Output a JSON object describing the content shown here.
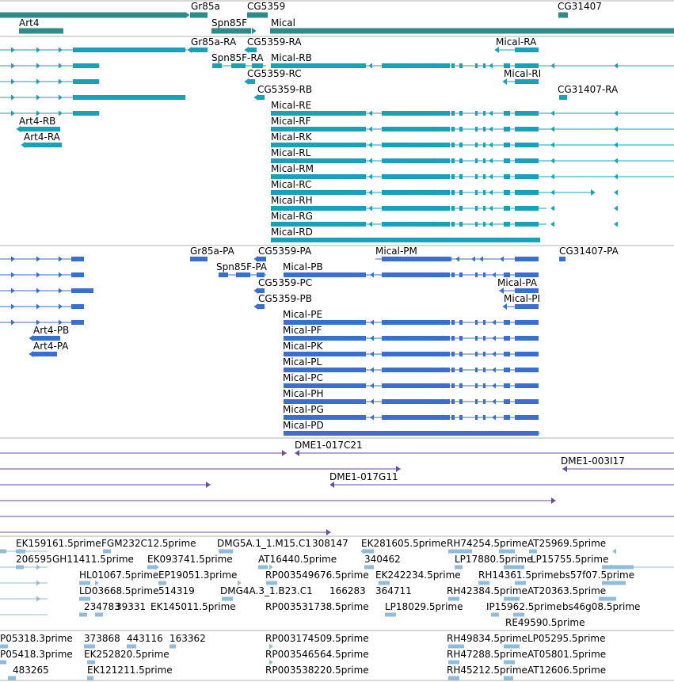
{
  "colors": {
    "gene": "#2f8a8a",
    "transcript": "#17a2b8",
    "protein": "#3a6ecf",
    "clone": "#6a4c9c",
    "est": "#8fbcd8",
    "divider": "#b0b0b0"
  },
  "tracks": [
    {
      "id": "genes",
      "labels": [
        {
          "text": "Gr85a"
        },
        {
          "text": "CG5359"
        },
        {
          "text": "CG31407"
        },
        {
          "text": "Art4"
        },
        {
          "text": "Spn85F"
        },
        {
          "text": "Mical"
        }
      ]
    },
    {
      "id": "transcripts",
      "labels": [
        {
          "text": "Gr85a-RA"
        },
        {
          "text": "CG5359-RA"
        },
        {
          "text": "Mical-RA"
        },
        {
          "text": "Spn85F-RA"
        },
        {
          "text": "Mical-RB"
        },
        {
          "text": "CG5359-RC"
        },
        {
          "text": "Mical-RI"
        },
        {
          "text": "CG5359-RB"
        },
        {
          "text": "CG31407-RA"
        },
        {
          "text": "Mical-RE"
        },
        {
          "text": "Art4-RB"
        },
        {
          "text": "Mical-RF"
        },
        {
          "text": "Art4-RA"
        },
        {
          "text": "Mical-RK"
        },
        {
          "text": "Mical-RL"
        },
        {
          "text": "Mical-RM"
        },
        {
          "text": "Mical-RC"
        },
        {
          "text": "Mical-RH"
        },
        {
          "text": "Mical-RG"
        },
        {
          "text": "Mical-RD"
        }
      ]
    },
    {
      "id": "proteins",
      "labels": [
        {
          "text": "Gr85a-PA"
        },
        {
          "text": "CG5359-PA"
        },
        {
          "text": "Mical-PM"
        },
        {
          "text": "CG31407-PA"
        },
        {
          "text": "Spn85F-PA"
        },
        {
          "text": "Mical-PB"
        },
        {
          "text": "CG5359-PC"
        },
        {
          "text": "Mical-PA"
        },
        {
          "text": "CG5359-PB"
        },
        {
          "text": "Mical-PI"
        },
        {
          "text": "Mical-PE"
        },
        {
          "text": "Art4-PB"
        },
        {
          "text": "Mical-PF"
        },
        {
          "text": "Art4-PA"
        },
        {
          "text": "Mical-PK"
        },
        {
          "text": "Mical-PL"
        },
        {
          "text": "Mical-PC"
        },
        {
          "text": "Mical-PH"
        },
        {
          "text": "Mical-PG"
        },
        {
          "text": "Mical-PD"
        }
      ]
    },
    {
      "id": "clones",
      "labels": [
        {
          "text": "DME1-017C21"
        },
        {
          "text": "DME1-003I17"
        },
        {
          "text": "DME1-017G11"
        }
      ]
    },
    {
      "id": "est5",
      "labels": [
        {
          "text": "EK159161.5prime"
        },
        {
          "text": "FGM232C12.5prime"
        },
        {
          "text": "DMG5A.1_1.M15.C1"
        },
        {
          "text": "308147"
        },
        {
          "text": "EK281605.5prime"
        },
        {
          "text": "RH74254.5prime"
        },
        {
          "text": "AT25969.5prime"
        },
        {
          "text": "206595"
        },
        {
          "text": "GH11411.5prime"
        },
        {
          "text": "EK093741.5prime"
        },
        {
          "text": "AT16440.5prime"
        },
        {
          "text": "340462"
        },
        {
          "text": "LP17880.5prime"
        },
        {
          "text": "LP15755.5prime"
        },
        {
          "text": "HL01067.5prime"
        },
        {
          "text": "EP19051.3prime"
        },
        {
          "text": "RP003549676.5prime"
        },
        {
          "text": "EK242234.5prime"
        },
        {
          "text": "RH14361.5prime"
        },
        {
          "text": "bs57f07.5prime"
        },
        {
          "text": "LD03668.5prime"
        },
        {
          "text": "514319"
        },
        {
          "text": "DMG4A.3_1.B23.C1"
        },
        {
          "text": "166283"
        },
        {
          "text": "364711"
        },
        {
          "text": "RH42384.5prime"
        },
        {
          "text": "AT20363.5prime"
        },
        {
          "text": "234783"
        },
        {
          "text": "39331"
        },
        {
          "text": "EK145011.5prime"
        },
        {
          "text": "RP003531738.5prime"
        },
        {
          "text": "LP18029.5prime"
        },
        {
          "text": "IP15962.5prime"
        },
        {
          "text": "bs46g08.5prime"
        },
        {
          "text": "RE49590.5prime"
        }
      ]
    },
    {
      "id": "est3",
      "labels": [
        {
          "text": "P05318.3prime"
        },
        {
          "text": "373868"
        },
        {
          "text": "443116"
        },
        {
          "text": "163362"
        },
        {
          "text": "RP003174509.5prime"
        },
        {
          "text": "RH49834.5prime"
        },
        {
          "text": "LP05295.5prime"
        },
        {
          "text": "P05418.3prime"
        },
        {
          "text": "EK252820.5prime"
        },
        {
          "text": "RP003546564.5prime"
        },
        {
          "text": "RH47288.5prime"
        },
        {
          "text": "AT05801.5prime"
        },
        {
          "text": "483265"
        },
        {
          "text": "EK121211.5prime"
        },
        {
          "text": "RP003538220.5prime"
        },
        {
          "text": "RH45212.5prime"
        },
        {
          "text": "AT12606.5prime"
        }
      ]
    }
  ]
}
